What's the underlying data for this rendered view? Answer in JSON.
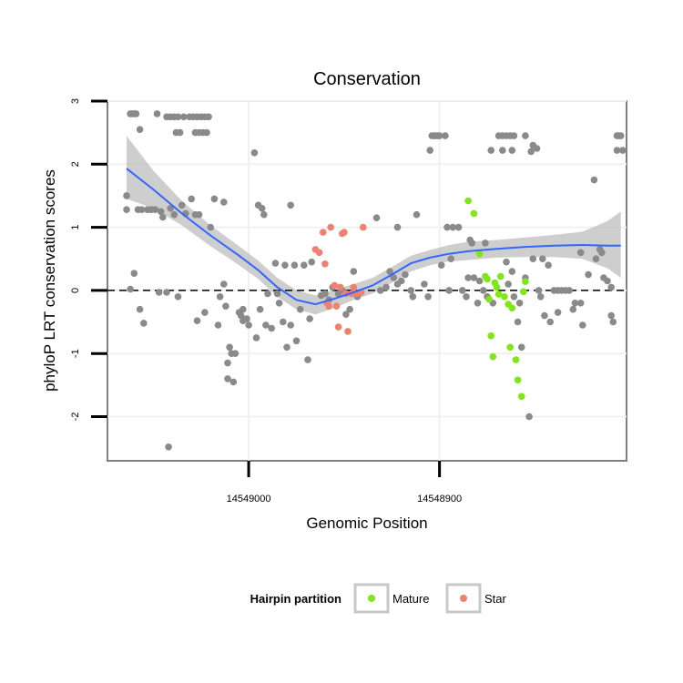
{
  "chart_data": {
    "type": "scatter",
    "title": "Conservation",
    "xlabel": "Genomic Position",
    "ylabel": "phyloP LRT conservation scores",
    "x_reversed": true,
    "xlim": [
      14549074,
      14548802
    ],
    "ylim": [
      -2.7,
      3.0
    ],
    "x_ticks": [
      14549000,
      14548900
    ],
    "x_tick_labels": [
      "14549000",
      "14548900"
    ],
    "y_ticks": [
      -2,
      -1,
      0,
      1,
      2,
      3
    ],
    "y_tick_labels": [
      "-2",
      "-1",
      "0",
      "1",
      "2",
      "3"
    ],
    "reference_line": {
      "y": 0,
      "style": "dashed"
    },
    "grid": true,
    "legend": {
      "title": "Hairpin partition",
      "placement": "bottom",
      "entries": [
        {
          "label": "Mature",
          "color": "#7fe61a"
        },
        {
          "label": "Star",
          "color": "#f08070"
        }
      ]
    },
    "colors": {
      "other": "#8a8a8a",
      "mature": "#7fe61a",
      "star": "#f08070",
      "smooth": "#3366ff",
      "ribbon": "#bdbdbd"
    },
    "series": [
      {
        "name": "Other",
        "points": [
          [
            14549062,
            2.8
          ],
          [
            14549061,
            2.8
          ],
          [
            14549060,
            2.8
          ],
          [
            14549059,
            2.8
          ],
          [
            14549057,
            2.55
          ],
          [
            14549048,
            2.8
          ],
          [
            14549043,
            2.75
          ],
          [
            14549041,
            2.75
          ],
          [
            14549039,
            2.75
          ],
          [
            14549037,
            2.75
          ],
          [
            14549034,
            2.75
          ],
          [
            14549031,
            2.75
          ],
          [
            14549029,
            2.75
          ],
          [
            14549027,
            2.75
          ],
          [
            14549025,
            2.75
          ],
          [
            14549023,
            2.75
          ],
          [
            14549021,
            2.75
          ],
          [
            14549038,
            2.5
          ],
          [
            14549036,
            2.5
          ],
          [
            14549028,
            2.5
          ],
          [
            14549026,
            2.5
          ],
          [
            14549024,
            2.5
          ],
          [
            14549022,
            2.5
          ],
          [
            14549064,
            1.5
          ],
          [
            14549064,
            1.28
          ],
          [
            14549062,
            0.02
          ],
          [
            14549060,
            0.27
          ],
          [
            14549058,
            1.28
          ],
          [
            14549057,
            -0.3
          ],
          [
            14549056,
            1.28
          ],
          [
            14549055,
            -0.52
          ],
          [
            14549053,
            1.28
          ],
          [
            14549051,
            1.28
          ],
          [
            14549049,
            1.28
          ],
          [
            14549047,
            -0.03
          ],
          [
            14549046,
            1.25
          ],
          [
            14549045,
            1.16
          ],
          [
            14549043,
            -0.03
          ],
          [
            14549042,
            -2.48
          ],
          [
            14549041,
            1.3
          ],
          [
            14549039,
            1.2
          ],
          [
            14549037,
            -0.1
          ],
          [
            14549035,
            1.35
          ],
          [
            14549033,
            1.22
          ],
          [
            14549030,
            1.45
          ],
          [
            14549028,
            1.2
          ],
          [
            14549027,
            -0.48
          ],
          [
            14549026,
            1.2
          ],
          [
            14549023,
            -0.35
          ],
          [
            14549020,
            1.0
          ],
          [
            14549018,
            1.45
          ],
          [
            14549016,
            -0.55
          ],
          [
            14549015,
            -0.1
          ],
          [
            14549013,
            1.4
          ],
          [
            14549013,
            0.1
          ],
          [
            14549012,
            -0.25
          ],
          [
            14549011,
            -1.15
          ],
          [
            14549011,
            -1.4
          ],
          [
            14549010,
            -0.9
          ],
          [
            14549009,
            -1.0
          ],
          [
            14549008,
            -1.45
          ],
          [
            14549007,
            -1.0
          ],
          [
            14549005,
            -0.35
          ],
          [
            14549004,
            -0.4
          ],
          [
            14549003,
            -0.3
          ],
          [
            14549003,
            -0.48
          ],
          [
            14549001,
            -0.45
          ],
          [
            14549000,
            -0.55
          ],
          [
            14548997,
            2.18
          ],
          [
            14548996,
            -0.75
          ],
          [
            14548995,
            1.35
          ],
          [
            14548994,
            -0.3
          ],
          [
            14548993,
            1.3
          ],
          [
            14548992,
            1.2
          ],
          [
            14548991,
            -0.55
          ],
          [
            14548990,
            -0.05
          ],
          [
            14548988,
            -0.6
          ],
          [
            14548986,
            0.43
          ],
          [
            14548985,
            -0.05
          ],
          [
            14548984,
            -0.2
          ],
          [
            14548982,
            -0.5
          ],
          [
            14548981,
            0.4
          ],
          [
            14548980,
            -0.9
          ],
          [
            14548978,
            -0.55
          ],
          [
            14548978,
            1.35
          ],
          [
            14548976,
            0.4
          ],
          [
            14548975,
            -0.8
          ],
          [
            14548973,
            -0.3
          ],
          [
            14548971,
            0.4
          ],
          [
            14548969,
            -1.1
          ],
          [
            14548968,
            -0.45
          ],
          [
            14548967,
            0.45
          ],
          [
            14548962,
            -0.08
          ],
          [
            14548960,
            -0.05
          ],
          [
            14548958,
            -0.15
          ],
          [
            14548956,
            0.05
          ],
          [
            14548953,
            -0.05
          ],
          [
            14548951,
            0.0
          ],
          [
            14548949,
            -0.38
          ],
          [
            14548947,
            -0.3
          ],
          [
            14548945,
            0.3
          ],
          [
            14548943,
            -0.1
          ],
          [
            14548933,
            1.15
          ],
          [
            14548931,
            0.0
          ],
          [
            14548928,
            0.05
          ],
          [
            14548926,
            0.3
          ],
          [
            14548924,
            0.2
          ],
          [
            14548922,
            1.0
          ],
          [
            14548922,
            0.1
          ],
          [
            14548920,
            0.15
          ],
          [
            14548918,
            0.25
          ],
          [
            14548915,
            0.0
          ],
          [
            14548914,
            -0.1
          ],
          [
            14548912,
            1.2
          ],
          [
            14548908,
            0.1
          ],
          [
            14548906,
            -0.1
          ],
          [
            14548905,
            2.22
          ],
          [
            14548904,
            2.45
          ],
          [
            14548903,
            2.45
          ],
          [
            14548902,
            2.45
          ],
          [
            14548901,
            2.45
          ],
          [
            14548900,
            2.45
          ],
          [
            14548899,
            0.4
          ],
          [
            14548897,
            2.45
          ],
          [
            14548896,
            1.0
          ],
          [
            14548895,
            0.0
          ],
          [
            14548894,
            0.5
          ],
          [
            14548893,
            1.0
          ],
          [
            14548890,
            1.0
          ],
          [
            14548888,
            0.0
          ],
          [
            14548886,
            -0.1
          ],
          [
            14548885,
            0.2
          ],
          [
            14548884,
            0.8
          ],
          [
            14548883,
            0.75
          ],
          [
            14548882,
            0.2
          ],
          [
            14548880,
            -0.2
          ],
          [
            14548879,
            0.15
          ],
          [
            14548877,
            0.0
          ],
          [
            14548876,
            0.75
          ],
          [
            14548875,
            -0.1
          ],
          [
            14548873,
            2.22
          ],
          [
            14548872,
            -0.2
          ],
          [
            14548869,
            2.45
          ],
          [
            14548867,
            2.45
          ],
          [
            14548865,
            2.45
          ],
          [
            14548863,
            2.45
          ],
          [
            14548861,
            2.45
          ],
          [
            14548867,
            2.22
          ],
          [
            14548862,
            2.22
          ],
          [
            14548865,
            0.45
          ],
          [
            14548864,
            0.1
          ],
          [
            14548862,
            0.3
          ],
          [
            14548861,
            -0.1
          ],
          [
            14548859,
            -0.5
          ],
          [
            14548858,
            -0.2
          ],
          [
            14548857,
            -0.9
          ],
          [
            14548855,
            0.2
          ],
          [
            14548855,
            2.45
          ],
          [
            14548853,
            -2.0
          ],
          [
            14548852,
            2.2
          ],
          [
            14548851,
            2.3
          ],
          [
            14548851,
            0.5
          ],
          [
            14548849,
            2.25
          ],
          [
            14548848,
            0.0
          ],
          [
            14548847,
            -0.1
          ],
          [
            14548846,
            0.5
          ],
          [
            14548845,
            -0.4
          ],
          [
            14548843,
            0.4
          ],
          [
            14548842,
            -0.5
          ],
          [
            14548840,
            0.0
          ],
          [
            14548838,
            -0.35
          ],
          [
            14548838,
            0.0
          ],
          [
            14548836,
            0.0
          ],
          [
            14548834,
            0.0
          ],
          [
            14548832,
            0.0
          ],
          [
            14548830,
            -0.3
          ],
          [
            14548829,
            -0.2
          ],
          [
            14548826,
            0.6
          ],
          [
            14548826,
            -0.2
          ],
          [
            14548825,
            -0.55
          ],
          [
            14548822,
            0.25
          ],
          [
            14548819,
            1.75
          ],
          [
            14548818,
            0.5
          ],
          [
            14548816,
            0.65
          ],
          [
            14548815,
            0.6
          ],
          [
            14548814,
            0.2
          ],
          [
            14548812,
            0.15
          ],
          [
            14548810,
            0.05
          ],
          [
            14548810,
            -0.4
          ],
          [
            14548809,
            -0.5
          ],
          [
            14548807,
            2.45
          ],
          [
            14548806,
            2.45
          ],
          [
            14548805,
            2.45
          ],
          [
            14548807,
            2.22
          ],
          [
            14548804,
            2.22
          ]
        ]
      },
      {
        "name": "Mature",
        "points": [
          [
            14548885,
            1.42
          ],
          [
            14548882,
            1.22
          ],
          [
            14548879,
            0.58
          ],
          [
            14548876,
            0.22
          ],
          [
            14548875,
            0.18
          ],
          [
            14548874,
            -0.14
          ],
          [
            14548873,
            -0.72
          ],
          [
            14548872,
            -1.05
          ],
          [
            14548871,
            0.12
          ],
          [
            14548870,
            0.05
          ],
          [
            14548869,
            -0.06
          ],
          [
            14548868,
            0.22
          ],
          [
            14548866,
            -0.1
          ],
          [
            14548864,
            -0.22
          ],
          [
            14548863,
            -0.9
          ],
          [
            14548862,
            -0.28
          ],
          [
            14548860,
            -1.1
          ],
          [
            14548859,
            -1.42
          ],
          [
            14548857,
            -1.68
          ],
          [
            14548856,
            -0.02
          ],
          [
            14548855,
            0.14
          ]
        ]
      },
      {
        "name": "Star",
        "points": [
          [
            14548965,
            0.65
          ],
          [
            14548963,
            0.6
          ],
          [
            14548961,
            0.92
          ],
          [
            14548960,
            0.42
          ],
          [
            14548959,
            -0.2
          ],
          [
            14548958,
            -0.25
          ],
          [
            14548957,
            1.0
          ],
          [
            14548955,
            0.08
          ],
          [
            14548954,
            -0.25
          ],
          [
            14548953,
            -0.58
          ],
          [
            14548952,
            0.05
          ],
          [
            14548951,
            0.9
          ],
          [
            14548950,
            0.92
          ],
          [
            14548949,
            -0.05
          ],
          [
            14548948,
            -0.65
          ],
          [
            14548946,
            -0.05
          ],
          [
            14548945,
            0.05
          ],
          [
            14548943,
            -0.05
          ],
          [
            14548941,
            -0.03
          ],
          [
            14548940,
            1.0
          ]
        ]
      }
    ],
    "smooth_line": [
      [
        14549064,
        1.93
      ],
      [
        14549050,
        1.6
      ],
      [
        14549035,
        1.22
      ],
      [
        14549020,
        0.87
      ],
      [
        14549005,
        0.55
      ],
      [
        14548995,
        0.32
      ],
      [
        14548985,
        0.05
      ],
      [
        14548975,
        -0.15
      ],
      [
        14548965,
        -0.22
      ],
      [
        14548955,
        -0.13
      ],
      [
        14548945,
        -0.03
      ],
      [
        14548935,
        0.08
      ],
      [
        14548925,
        0.25
      ],
      [
        14548915,
        0.43
      ],
      [
        14548905,
        0.52
      ],
      [
        14548895,
        0.58
      ],
      [
        14548885,
        0.62
      ],
      [
        14548870,
        0.66
      ],
      [
        14548855,
        0.69
      ],
      [
        14548840,
        0.71
      ],
      [
        14548825,
        0.72
      ],
      [
        14548812,
        0.71
      ],
      [
        14548805,
        0.71
      ]
    ],
    "confidence_band": [
      [
        14549064,
        2.45,
        1.45
      ],
      [
        14549050,
        1.9,
        1.3
      ],
      [
        14549035,
        1.42,
        1.03
      ],
      [
        14549020,
        1.03,
        0.7
      ],
      [
        14549005,
        0.7,
        0.4
      ],
      [
        14548995,
        0.47,
        0.18
      ],
      [
        14548985,
        0.2,
        -0.1
      ],
      [
        14548975,
        0.0,
        -0.3
      ],
      [
        14548965,
        -0.08,
        -0.38
      ],
      [
        14548955,
        0.01,
        -0.28
      ],
      [
        14548945,
        0.1,
        -0.15
      ],
      [
        14548935,
        0.2,
        -0.05
      ],
      [
        14548925,
        0.37,
        0.12
      ],
      [
        14548915,
        0.55,
        0.3
      ],
      [
        14548905,
        0.64,
        0.4
      ],
      [
        14548895,
        0.72,
        0.46
      ],
      [
        14548885,
        0.77,
        0.48
      ],
      [
        14548870,
        0.8,
        0.52
      ],
      [
        14548855,
        0.84,
        0.53
      ],
      [
        14548840,
        0.88,
        0.53
      ],
      [
        14548825,
        0.93,
        0.5
      ],
      [
        14548812,
        1.1,
        0.35
      ],
      [
        14548805,
        1.25,
        0.2
      ]
    ]
  }
}
